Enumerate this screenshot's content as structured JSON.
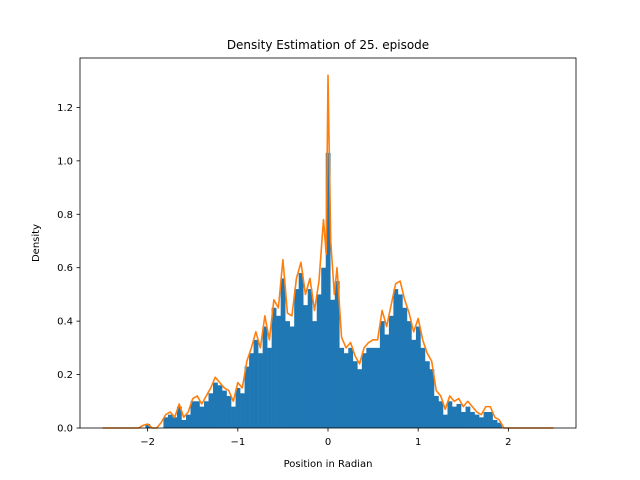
{
  "chart_data": {
    "type": "bar",
    "title": "Density Estimation of 25. episode",
    "xlabel": "Position in Radian",
    "ylabel": "Density",
    "xlim": [
      -2.75,
      2.75
    ],
    "ylim": [
      0,
      1.385
    ],
    "grid": false,
    "x_ticks": [
      -2,
      -1,
      0,
      1,
      2
    ],
    "x_tick_labels": [
      "−2",
      "−1",
      "0",
      "1",
      "2"
    ],
    "y_ticks": [
      0,
      0.2,
      0.4,
      0.6,
      0.8,
      1.0,
      1.2
    ],
    "y_tick_labels": [
      "0.0",
      "0.2",
      "0.4",
      "0.6",
      "0.8",
      "1.0",
      "1.2"
    ],
    "series": [
      {
        "kind": "histogram",
        "color": "#1f77b4",
        "points": [
          [
            -2.05,
            0.0
          ],
          [
            -2.0,
            0.015
          ],
          [
            -1.95,
            0.0
          ],
          [
            -1.9,
            0.0
          ],
          [
            -1.8,
            0.04
          ],
          [
            -1.75,
            0.05
          ],
          [
            -1.7,
            0.04
          ],
          [
            -1.65,
            0.08
          ],
          [
            -1.6,
            0.03
          ],
          [
            -1.55,
            0.05
          ],
          [
            -1.5,
            0.1
          ],
          [
            -1.45,
            0.1
          ],
          [
            -1.4,
            0.08
          ],
          [
            -1.35,
            0.1
          ],
          [
            -1.3,
            0.13
          ],
          [
            -1.25,
            0.17
          ],
          [
            -1.2,
            0.16
          ],
          [
            -1.15,
            0.14
          ],
          [
            -1.1,
            0.12
          ],
          [
            -1.05,
            0.08
          ],
          [
            -1.0,
            0.15
          ],
          [
            -0.95,
            0.13
          ],
          [
            -0.9,
            0.23
          ],
          [
            -0.85,
            0.28
          ],
          [
            -0.8,
            0.33
          ],
          [
            -0.75,
            0.28
          ],
          [
            -0.7,
            0.38
          ],
          [
            -0.65,
            0.3
          ],
          [
            -0.6,
            0.45
          ],
          [
            -0.55,
            0.42
          ],
          [
            -0.5,
            0.56
          ],
          [
            -0.45,
            0.4
          ],
          [
            -0.4,
            0.38
          ],
          [
            -0.35,
            0.52
          ],
          [
            -0.3,
            0.58
          ],
          [
            -0.25,
            0.46
          ],
          [
            -0.2,
            0.52
          ],
          [
            -0.15,
            0.4
          ],
          [
            -0.1,
            0.5
          ],
          [
            -0.05,
            0.6
          ],
          [
            0.0,
            1.03
          ],
          [
            0.05,
            0.48
          ],
          [
            0.1,
            0.55
          ],
          [
            0.15,
            0.3
          ],
          [
            0.2,
            0.28
          ],
          [
            0.25,
            0.3
          ],
          [
            0.3,
            0.25
          ],
          [
            0.35,
            0.22
          ],
          [
            0.4,
            0.28
          ],
          [
            0.45,
            0.3
          ],
          [
            0.5,
            0.3
          ],
          [
            0.55,
            0.3
          ],
          [
            0.6,
            0.4
          ],
          [
            0.65,
            0.35
          ],
          [
            0.7,
            0.42
          ],
          [
            0.75,
            0.52
          ],
          [
            0.8,
            0.5
          ],
          [
            0.85,
            0.45
          ],
          [
            0.9,
            0.4
          ],
          [
            0.95,
            0.33
          ],
          [
            1.0,
            0.38
          ],
          [
            1.05,
            0.3
          ],
          [
            1.1,
            0.25
          ],
          [
            1.15,
            0.22
          ],
          [
            1.2,
            0.12
          ],
          [
            1.25,
            0.1
          ],
          [
            1.3,
            0.05
          ],
          [
            1.35,
            0.1
          ],
          [
            1.4,
            0.08
          ],
          [
            1.45,
            0.09
          ],
          [
            1.5,
            0.06
          ],
          [
            1.55,
            0.08
          ],
          [
            1.6,
            0.06
          ],
          [
            1.65,
            0.05
          ],
          [
            1.7,
            0.04
          ],
          [
            1.75,
            0.06
          ],
          [
            1.8,
            0.06
          ],
          [
            1.85,
            0.03
          ],
          [
            1.9,
            0.02
          ],
          [
            1.95,
            0.0
          ]
        ]
      },
      {
        "kind": "line",
        "color": "#ff7f0e",
        "points": [
          [
            -2.5,
            0.0
          ],
          [
            -2.1,
            0.0
          ],
          [
            -2.05,
            0.01
          ],
          [
            -2.0,
            0.015
          ],
          [
            -1.95,
            0.0
          ],
          [
            -1.9,
            0.0
          ],
          [
            -1.85,
            0.02
          ],
          [
            -1.8,
            0.05
          ],
          [
            -1.75,
            0.06
          ],
          [
            -1.7,
            0.04
          ],
          [
            -1.65,
            0.09
          ],
          [
            -1.6,
            0.04
          ],
          [
            -1.55,
            0.06
          ],
          [
            -1.5,
            0.11
          ],
          [
            -1.45,
            0.12
          ],
          [
            -1.4,
            0.09
          ],
          [
            -1.35,
            0.12
          ],
          [
            -1.3,
            0.15
          ],
          [
            -1.25,
            0.19
          ],
          [
            -1.2,
            0.17
          ],
          [
            -1.15,
            0.15
          ],
          [
            -1.1,
            0.14
          ],
          [
            -1.05,
            0.1
          ],
          [
            -1.0,
            0.17
          ],
          [
            -0.95,
            0.15
          ],
          [
            -0.9,
            0.25
          ],
          [
            -0.85,
            0.3
          ],
          [
            -0.8,
            0.36
          ],
          [
            -0.75,
            0.3
          ],
          [
            -0.7,
            0.42
          ],
          [
            -0.65,
            0.33
          ],
          [
            -0.6,
            0.48
          ],
          [
            -0.55,
            0.45
          ],
          [
            -0.5,
            0.63
          ],
          [
            -0.45,
            0.43
          ],
          [
            -0.4,
            0.42
          ],
          [
            -0.35,
            0.56
          ],
          [
            -0.3,
            0.62
          ],
          [
            -0.25,
            0.5
          ],
          [
            -0.2,
            0.56
          ],
          [
            -0.15,
            0.44
          ],
          [
            -0.1,
            0.55
          ],
          [
            -0.05,
            0.78
          ],
          [
            -0.02,
            0.65
          ],
          [
            0.0,
            1.32
          ],
          [
            0.03,
            0.7
          ],
          [
            0.07,
            0.5
          ],
          [
            0.1,
            0.6
          ],
          [
            0.15,
            0.34
          ],
          [
            0.2,
            0.3
          ],
          [
            0.25,
            0.32
          ],
          [
            0.3,
            0.27
          ],
          [
            0.35,
            0.24
          ],
          [
            0.4,
            0.3
          ],
          [
            0.45,
            0.32
          ],
          [
            0.5,
            0.33
          ],
          [
            0.55,
            0.33
          ],
          [
            0.6,
            0.44
          ],
          [
            0.65,
            0.38
          ],
          [
            0.7,
            0.46
          ],
          [
            0.75,
            0.54
          ],
          [
            0.8,
            0.55
          ],
          [
            0.85,
            0.48
          ],
          [
            0.9,
            0.43
          ],
          [
            0.95,
            0.36
          ],
          [
            1.0,
            0.41
          ],
          [
            1.05,
            0.33
          ],
          [
            1.1,
            0.28
          ],
          [
            1.15,
            0.25
          ],
          [
            1.2,
            0.14
          ],
          [
            1.25,
            0.12
          ],
          [
            1.3,
            0.07
          ],
          [
            1.35,
            0.12
          ],
          [
            1.4,
            0.1
          ],
          [
            1.45,
            0.11
          ],
          [
            1.5,
            0.08
          ],
          [
            1.55,
            0.1
          ],
          [
            1.6,
            0.08
          ],
          [
            1.65,
            0.06
          ],
          [
            1.7,
            0.05
          ],
          [
            1.75,
            0.08
          ],
          [
            1.8,
            0.08
          ],
          [
            1.85,
            0.04
          ],
          [
            1.9,
            0.03
          ],
          [
            1.95,
            0.0
          ],
          [
            2.0,
            0.0
          ],
          [
            2.5,
            0.0
          ]
        ]
      }
    ]
  }
}
